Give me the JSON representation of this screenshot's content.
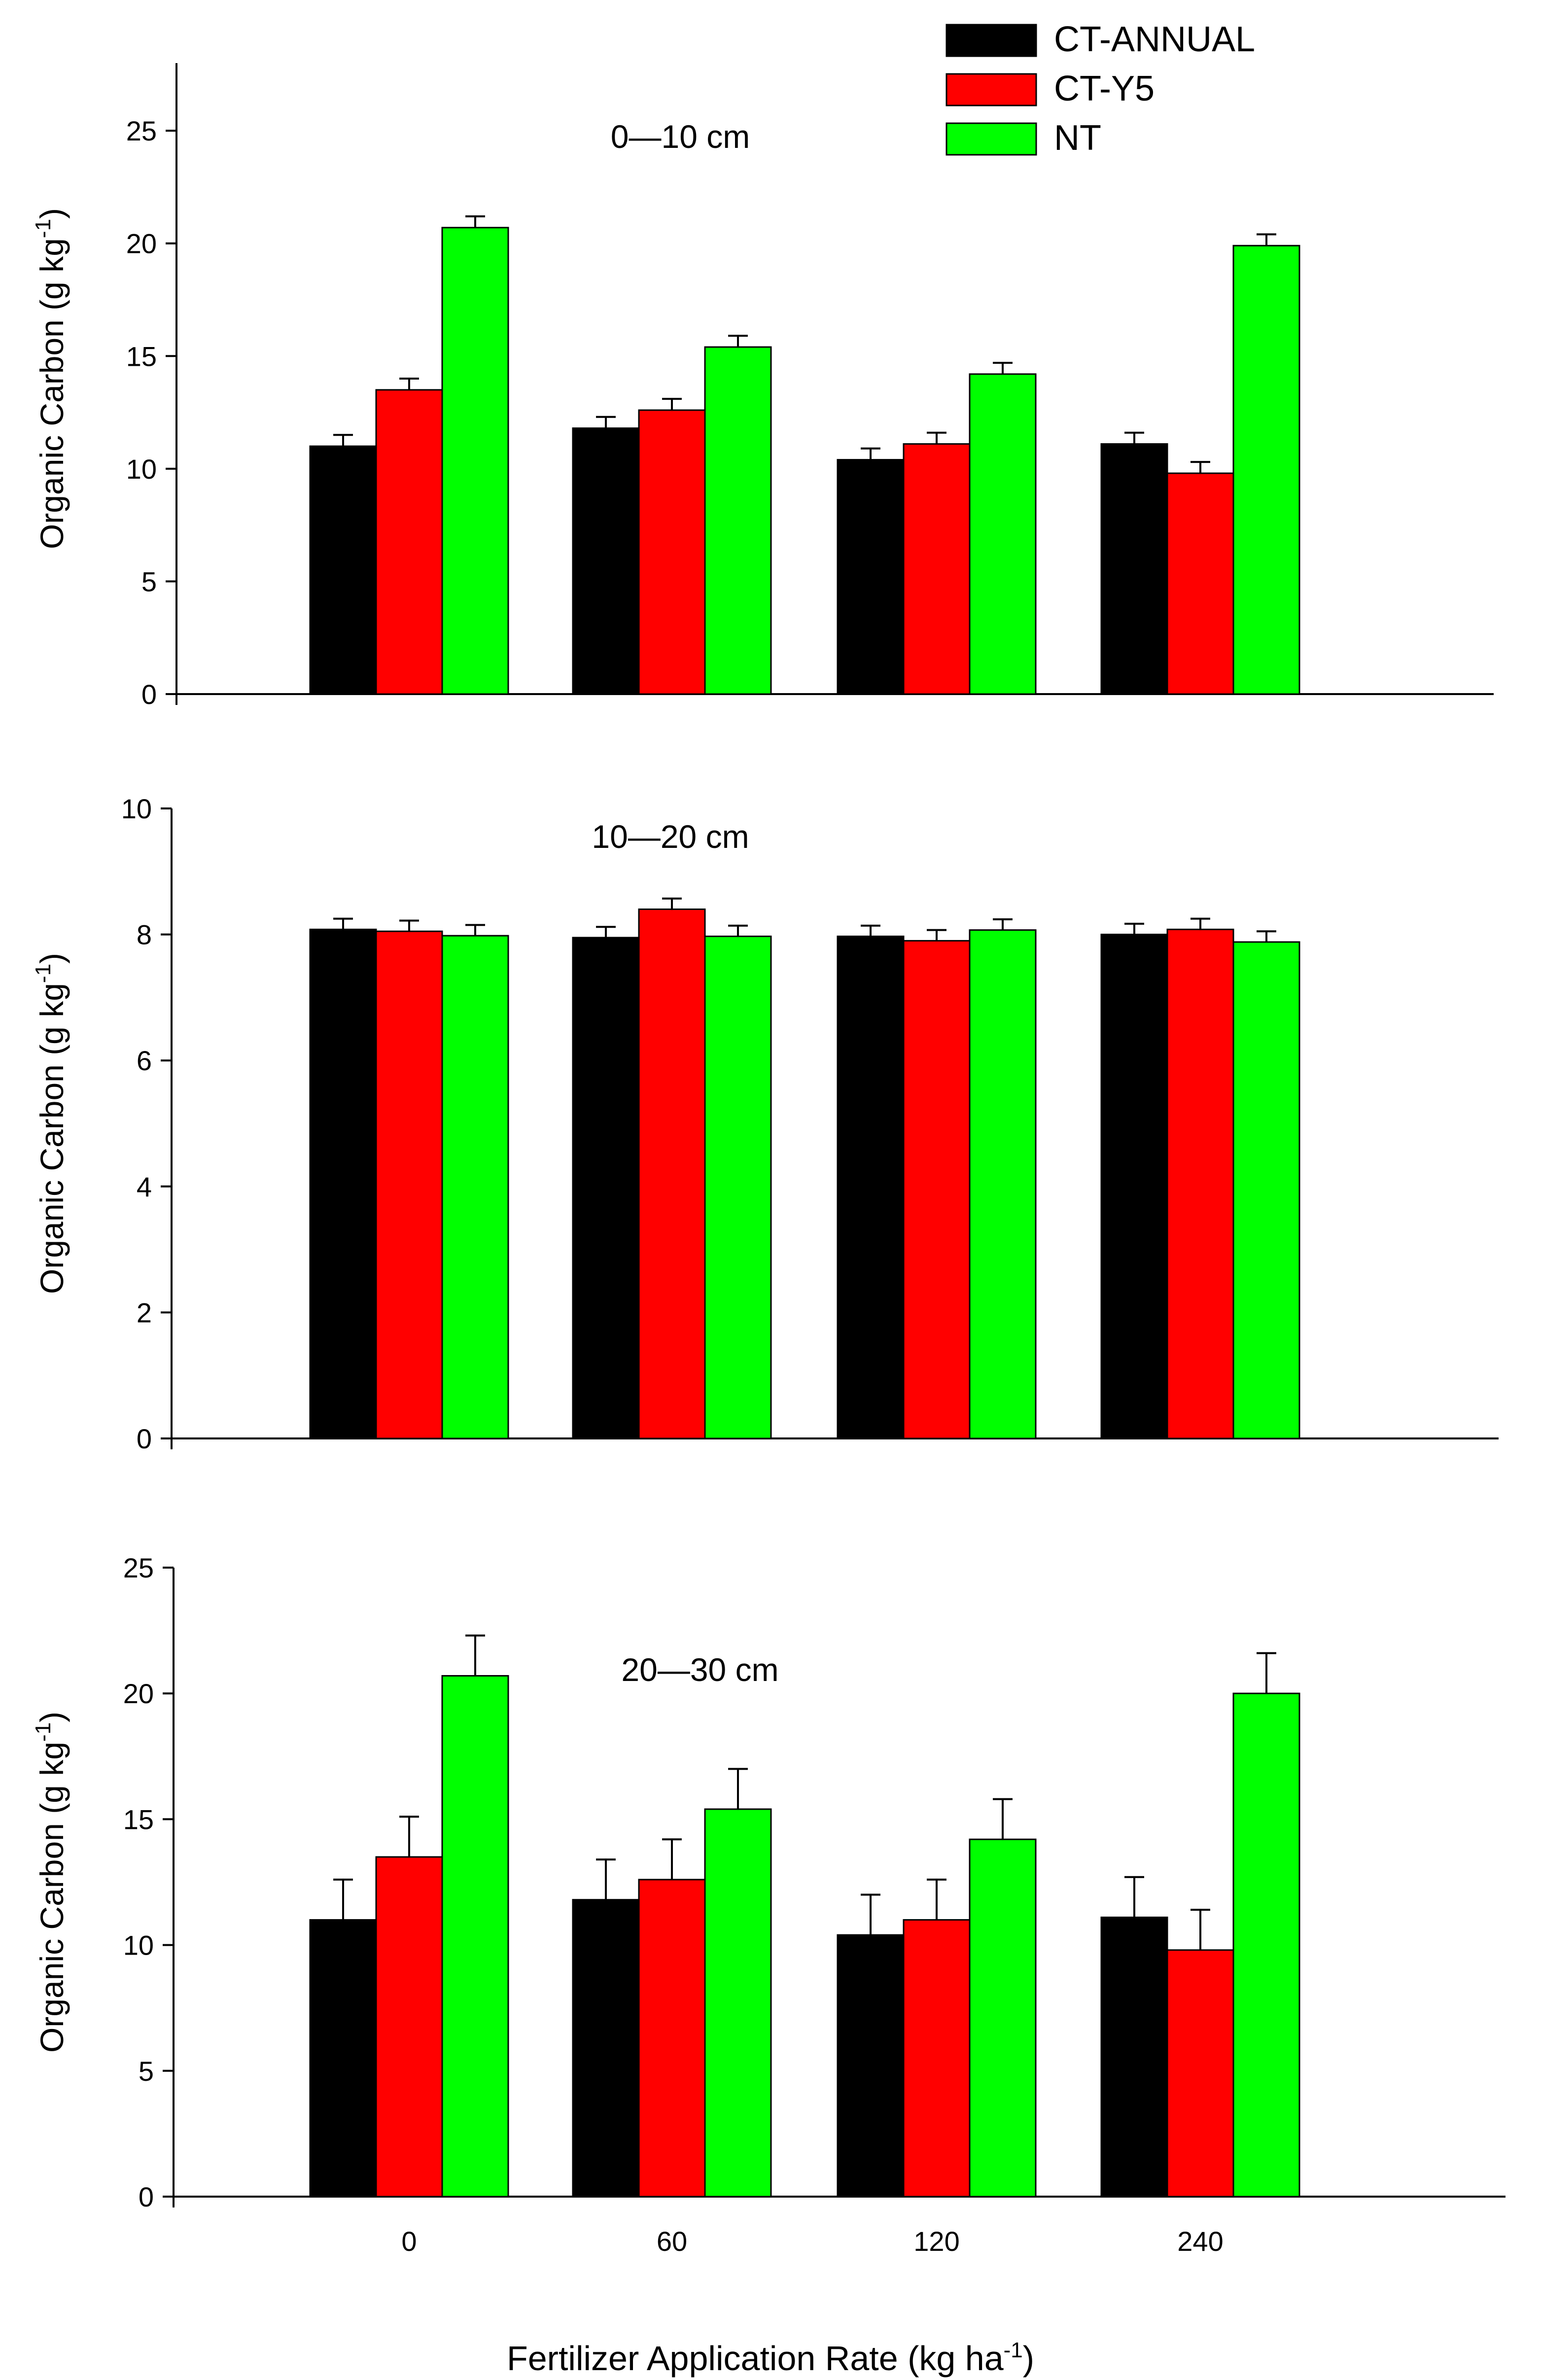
{
  "chart_data": [
    {
      "type": "bar",
      "panel_label": "0—10 cm",
      "categories": [
        "0",
        "60",
        "120",
        "240"
      ],
      "series": [
        {
          "name": "CT-ANNUAL",
          "color": "#000000",
          "values": [
            11.0,
            11.8,
            10.4,
            11.1
          ],
          "errors": [
            0.5,
            0.5,
            0.5,
            0.5
          ]
        },
        {
          "name": "CT-Y5",
          "color": "#ff0000",
          "values": [
            13.5,
            12.6,
            11.1,
            9.8
          ],
          "errors": [
            0.5,
            0.5,
            0.5,
            0.5
          ]
        },
        {
          "name": "NT",
          "color": "#00ff00",
          "values": [
            20.7,
            15.4,
            14.2,
            19.9
          ],
          "errors": [
            0.5,
            0.5,
            0.5,
            0.5
          ]
        }
      ],
      "ylim": [
        0,
        28
      ],
      "yticks": [
        0,
        5,
        10,
        15,
        20,
        25
      ],
      "ylabel": "Organic Carbon (g kg",
      "ylabel_sup": "-1",
      "ylabel_end": ")",
      "legend": [
        "CT-ANNUAL",
        "CT-Y5",
        "NT"
      ],
      "legend_position": "top-right"
    },
    {
      "type": "bar",
      "panel_label": "10—20 cm",
      "categories": [
        "0",
        "60",
        "120",
        "240"
      ],
      "series": [
        {
          "name": "CT-ANNUAL",
          "color": "#000000",
          "values": [
            8.08,
            7.95,
            7.97,
            8.0
          ],
          "errors": [
            0.17,
            0.17,
            0.17,
            0.17
          ]
        },
        {
          "name": "CT-Y5",
          "color": "#ff0000",
          "values": [
            8.05,
            8.4,
            7.9,
            8.08
          ],
          "errors": [
            0.17,
            0.17,
            0.17,
            0.17
          ]
        },
        {
          "name": "NT",
          "color": "#00ff00",
          "values": [
            7.98,
            7.97,
            8.07,
            7.88
          ],
          "errors": [
            0.17,
            0.17,
            0.17,
            0.17
          ]
        }
      ],
      "ylim": [
        0,
        10
      ],
      "yticks": [
        0,
        2,
        4,
        6,
        8,
        10
      ],
      "ylabel": "Organic Carbon (g kg",
      "ylabel_sup": "-1",
      "ylabel_end": ")"
    },
    {
      "type": "bar",
      "panel_label": "20—30 cm",
      "categories": [
        "0",
        "60",
        "120",
        "240"
      ],
      "series": [
        {
          "name": "CT-ANNUAL",
          "color": "#000000",
          "values": [
            11.0,
            11.8,
            10.4,
            11.1
          ],
          "errors": [
            1.6,
            1.6,
            1.6,
            1.6
          ]
        },
        {
          "name": "CT-Y5",
          "color": "#ff0000",
          "values": [
            13.5,
            12.6,
            11.0,
            9.8
          ],
          "errors": [
            1.6,
            1.6,
            1.6,
            1.6
          ]
        },
        {
          "name": "NT",
          "color": "#00ff00",
          "values": [
            20.7,
            15.4,
            14.2,
            20.0
          ],
          "errors": [
            1.6,
            1.6,
            1.6,
            1.6
          ]
        }
      ],
      "ylim": [
        0,
        25
      ],
      "yticks": [
        0,
        5,
        10,
        15,
        20,
        25
      ],
      "ylabel": "Organic Carbon (g kg",
      "ylabel_sup": "-1",
      "ylabel_end": ")",
      "xticks": [
        "0",
        "60",
        "120",
        "240"
      ]
    }
  ],
  "xlabel": {
    "text": "Fertilizer Application Rate (kg ha",
    "sup": "-1",
    "end": ")"
  }
}
